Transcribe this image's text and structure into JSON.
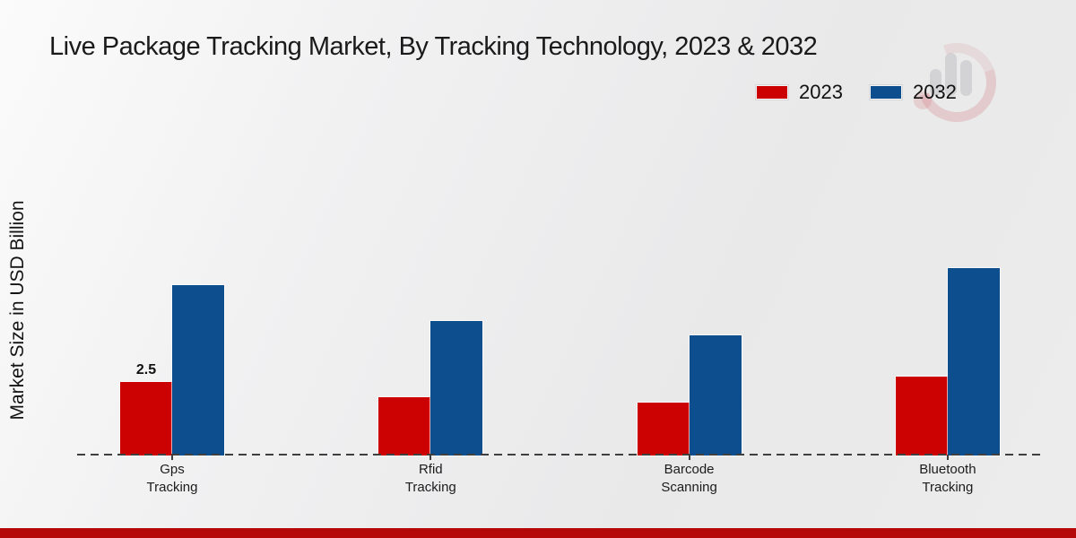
{
  "title": "Live Package Tracking Market, By Tracking Technology, 2023 & 2032",
  "chart_data": {
    "type": "bar",
    "title": "Live Package Tracking Market, By Tracking Technology, 2023 & 2032",
    "ylabel": "Market Size in USD Billion",
    "xlabel": "",
    "categories": [
      "Gps Tracking",
      "Rfid Tracking",
      "Barcode Scanning",
      "Bluetooth Tracking"
    ],
    "series": [
      {
        "name": "2023",
        "color": "#cc0101",
        "values": [
          2.5,
          2.0,
          1.8,
          2.7
        ]
      },
      {
        "name": "2032",
        "color": "#0d4e8f",
        "values": [
          5.8,
          4.6,
          4.1,
          6.4
        ]
      }
    ],
    "annotations": [
      {
        "series": "2023",
        "category": "Gps Tracking",
        "text": "2.5"
      }
    ],
    "ylim": [
      0,
      7
    ],
    "grid": false,
    "baseline_style": "dashed",
    "legend_position": "top-right"
  },
  "colors": {
    "series_2023": "#cc0101",
    "series_2032": "#0d4e8f",
    "footer_strip": "#b50909",
    "baseline": "#3f3f3f",
    "background": "#ececec"
  },
  "watermark": {
    "name": "mrfr-logo-watermark"
  }
}
